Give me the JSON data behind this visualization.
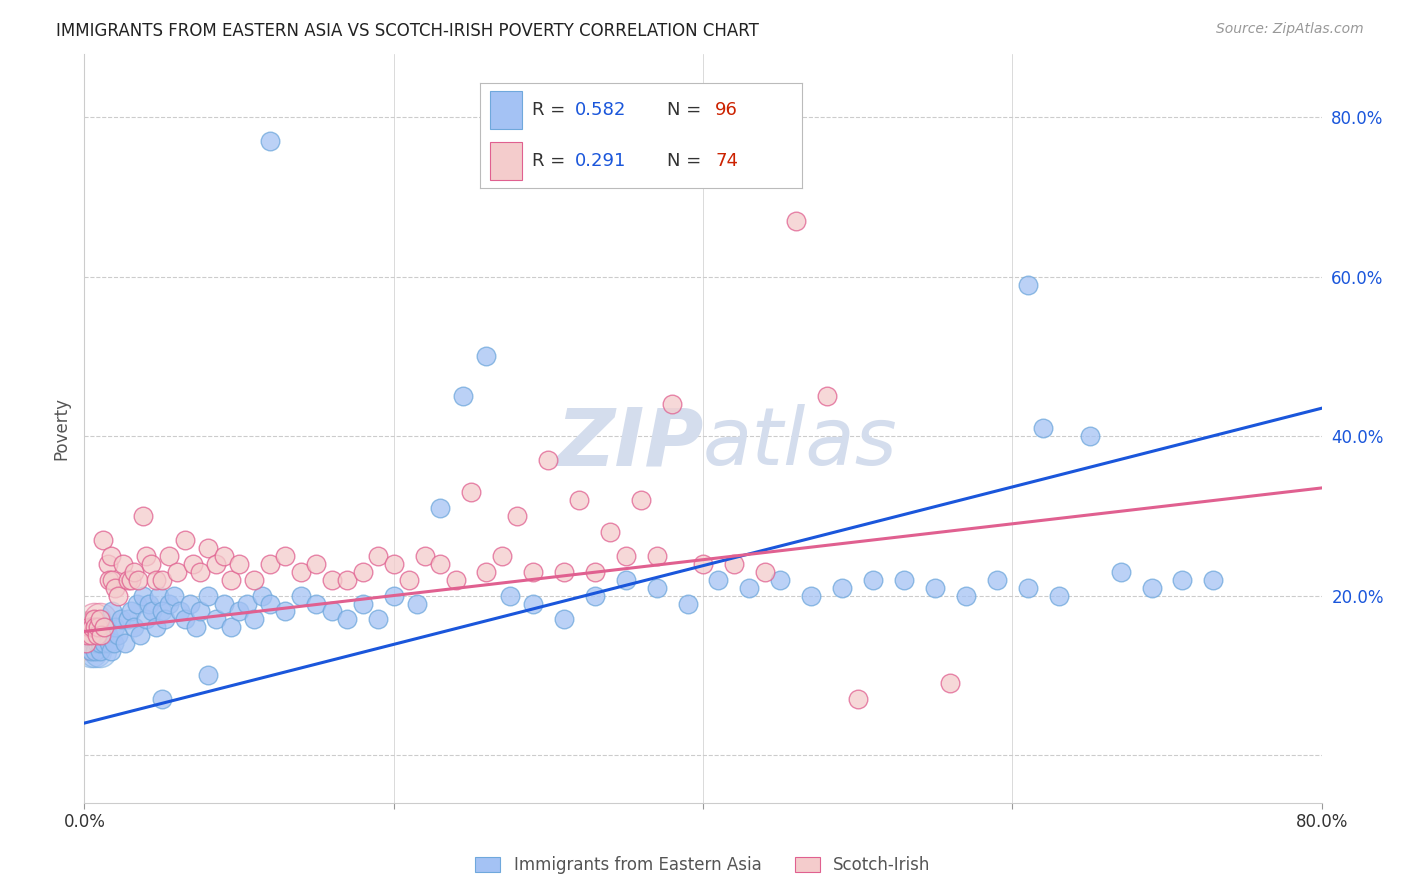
{
  "title": "IMMIGRANTS FROM EASTERN ASIA VS SCOTCH-IRISH POVERTY CORRELATION CHART",
  "source": "Source: ZipAtlas.com",
  "ylabel": "Poverty",
  "watermark": "ZIPatlas",
  "series1": {
    "label": "Immigrants from Eastern Asia",
    "color": "#a4c2f4",
    "edge_color": "#6fa8dc",
    "R": 0.582,
    "N": 96,
    "x": [
      0.002,
      0.003,
      0.004,
      0.005,
      0.005,
      0.006,
      0.007,
      0.007,
      0.008,
      0.008,
      0.009,
      0.01,
      0.01,
      0.011,
      0.012,
      0.013,
      0.014,
      0.015,
      0.016,
      0.017,
      0.018,
      0.019,
      0.02,
      0.022,
      0.024,
      0.026,
      0.028,
      0.03,
      0.032,
      0.034,
      0.036,
      0.038,
      0.04,
      0.042,
      0.044,
      0.046,
      0.048,
      0.05,
      0.052,
      0.055,
      0.058,
      0.062,
      0.065,
      0.068,
      0.072,
      0.075,
      0.08,
      0.085,
      0.09,
      0.095,
      0.1,
      0.105,
      0.11,
      0.115,
      0.12,
      0.13,
      0.14,
      0.15,
      0.16,
      0.17,
      0.18,
      0.19,
      0.2,
      0.215,
      0.23,
      0.245,
      0.26,
      0.275,
      0.29,
      0.31,
      0.33,
      0.35,
      0.37,
      0.39,
      0.41,
      0.43,
      0.45,
      0.47,
      0.49,
      0.51,
      0.53,
      0.55,
      0.57,
      0.59,
      0.61,
      0.63,
      0.65,
      0.67,
      0.69,
      0.71,
      0.73,
      0.61,
      0.62,
      0.05,
      0.08,
      0.12
    ],
    "y": [
      0.15,
      0.14,
      0.13,
      0.15,
      0.16,
      0.14,
      0.15,
      0.13,
      0.14,
      0.16,
      0.15,
      0.13,
      0.14,
      0.16,
      0.15,
      0.14,
      0.16,
      0.15,
      0.14,
      0.13,
      0.18,
      0.14,
      0.16,
      0.15,
      0.17,
      0.14,
      0.17,
      0.18,
      0.16,
      0.19,
      0.15,
      0.2,
      0.17,
      0.19,
      0.18,
      0.16,
      0.2,
      0.18,
      0.17,
      0.19,
      0.2,
      0.18,
      0.17,
      0.19,
      0.16,
      0.18,
      0.2,
      0.17,
      0.19,
      0.16,
      0.18,
      0.19,
      0.17,
      0.2,
      0.19,
      0.18,
      0.2,
      0.19,
      0.18,
      0.17,
      0.19,
      0.17,
      0.2,
      0.19,
      0.31,
      0.45,
      0.5,
      0.2,
      0.19,
      0.17,
      0.2,
      0.22,
      0.21,
      0.19,
      0.22,
      0.21,
      0.22,
      0.2,
      0.21,
      0.22,
      0.22,
      0.21,
      0.2,
      0.22,
      0.21,
      0.2,
      0.4,
      0.23,
      0.21,
      0.22,
      0.22,
      0.59,
      0.41,
      0.07,
      0.1,
      0.77
    ]
  },
  "series2": {
    "label": "Scotch-Irish",
    "color": "#f4cccc",
    "edge_color": "#e06090",
    "R": 0.291,
    "N": 74,
    "x": [
      0.001,
      0.002,
      0.003,
      0.004,
      0.005,
      0.006,
      0.007,
      0.008,
      0.009,
      0.01,
      0.011,
      0.012,
      0.013,
      0.015,
      0.016,
      0.017,
      0.018,
      0.02,
      0.022,
      0.025,
      0.028,
      0.03,
      0.032,
      0.035,
      0.038,
      0.04,
      0.043,
      0.046,
      0.05,
      0.055,
      0.06,
      0.065,
      0.07,
      0.075,
      0.08,
      0.085,
      0.09,
      0.095,
      0.1,
      0.11,
      0.12,
      0.13,
      0.14,
      0.15,
      0.16,
      0.17,
      0.18,
      0.19,
      0.2,
      0.21,
      0.22,
      0.23,
      0.24,
      0.25,
      0.26,
      0.27,
      0.28,
      0.29,
      0.3,
      0.31,
      0.32,
      0.33,
      0.34,
      0.35,
      0.36,
      0.37,
      0.38,
      0.4,
      0.42,
      0.44,
      0.46,
      0.48,
      0.5,
      0.56
    ],
    "y": [
      0.14,
      0.15,
      0.16,
      0.15,
      0.16,
      0.17,
      0.16,
      0.15,
      0.16,
      0.17,
      0.15,
      0.27,
      0.16,
      0.24,
      0.22,
      0.25,
      0.22,
      0.21,
      0.2,
      0.24,
      0.22,
      0.22,
      0.23,
      0.22,
      0.3,
      0.25,
      0.24,
      0.22,
      0.22,
      0.25,
      0.23,
      0.27,
      0.24,
      0.23,
      0.26,
      0.24,
      0.25,
      0.22,
      0.24,
      0.22,
      0.24,
      0.25,
      0.23,
      0.24,
      0.22,
      0.22,
      0.23,
      0.25,
      0.24,
      0.22,
      0.25,
      0.24,
      0.22,
      0.33,
      0.23,
      0.25,
      0.3,
      0.23,
      0.37,
      0.23,
      0.32,
      0.23,
      0.28,
      0.25,
      0.32,
      0.25,
      0.44,
      0.24,
      0.24,
      0.23,
      0.67,
      0.45,
      0.07,
      0.09
    ]
  },
  "xlim": [
    0.0,
    0.8
  ],
  "ylim": [
    -0.06,
    0.88
  ],
  "line1_y_start": 0.04,
  "line1_y_end": 0.435,
  "line2_y_start": 0.155,
  "line2_y_end": 0.335,
  "background_color": "#ffffff",
  "grid_color": "#cccccc",
  "watermark_color": "#d4dded",
  "bubble_size": 180
}
